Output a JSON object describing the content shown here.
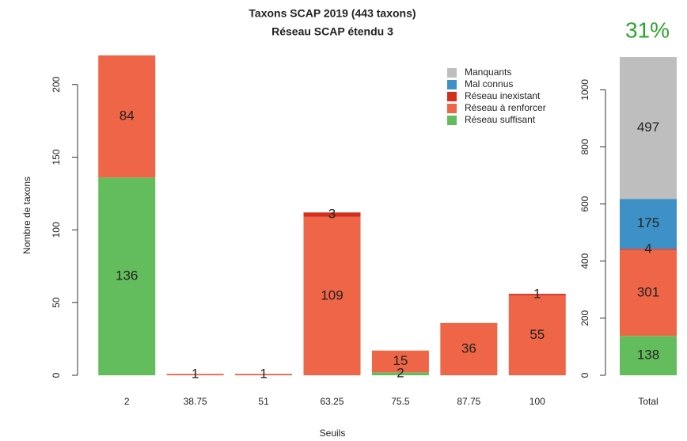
{
  "chart_data": [
    {
      "type": "bar",
      "stacked": true,
      "title": "Taxons SCAP 2019 (443 taxons)",
      "subtitle": "Réseau SCAP étendu 3",
      "x_label": "Seuils",
      "y_label": "Nombre de taxons",
      "categories": [
        "2",
        "38.75",
        "51",
        "63.25",
        "75.5",
        "87.75",
        "100"
      ],
      "series": [
        {
          "name": "Réseau suffisant",
          "color": "#63bd5c",
          "values": [
            136,
            0,
            0,
            0,
            2,
            0,
            0
          ]
        },
        {
          "name": "Réseau à renforcer",
          "color": "#ee6547",
          "values": [
            84,
            1,
            1,
            109,
            15,
            36,
            55
          ]
        },
        {
          "name": "Réseau inexistant",
          "color": "#d42e1c",
          "values": [
            0,
            0,
            0,
            3,
            0,
            0,
            1
          ]
        },
        {
          "name": "Mal connus",
          "color": "#3e91c6",
          "values": [
            0,
            0,
            0,
            0,
            0,
            0,
            0
          ]
        },
        {
          "name": "Manquants",
          "color": "#bebebe",
          "values": [
            0,
            0,
            0,
            0,
            0,
            0,
            0
          ]
        }
      ],
      "ylim": [
        0,
        220
      ],
      "yticks": [
        0,
        50,
        100,
        150,
        200
      ],
      "legend": "top-right"
    },
    {
      "type": "bar",
      "stacked": true,
      "annotation": "31%",
      "categories": [
        "Total"
      ],
      "series": [
        {
          "name": "Réseau suffisant",
          "color": "#63bd5c",
          "values": [
            138
          ]
        },
        {
          "name": "Réseau à renforcer",
          "color": "#ee6547",
          "values": [
            301
          ]
        },
        {
          "name": "Réseau inexistant",
          "color": "#d42e1c",
          "values": [
            4
          ]
        },
        {
          "name": "Mal connus",
          "color": "#3e91c6",
          "values": [
            175
          ]
        },
        {
          "name": "Manquants",
          "color": "#bebebe",
          "values": [
            497
          ]
        }
      ],
      "ylim": [
        0,
        1115
      ],
      "yticks": [
        0,
        200,
        400,
        600,
        800,
        1000
      ]
    }
  ]
}
